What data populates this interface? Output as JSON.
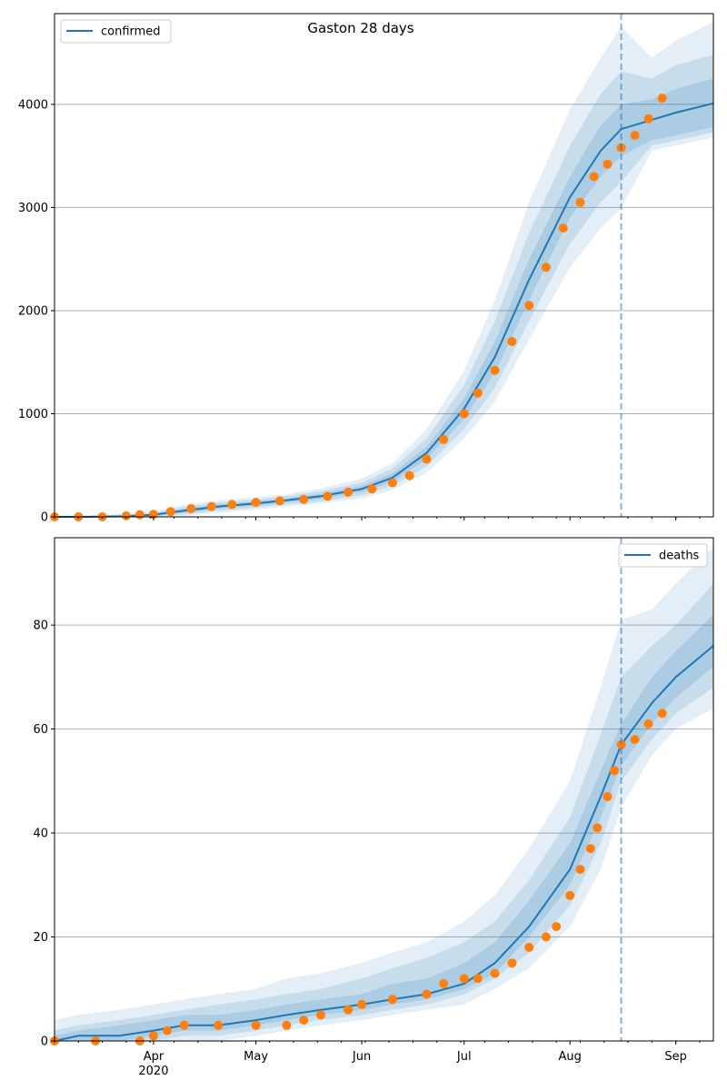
{
  "title": "Gaston 28 days",
  "colors": {
    "line": "#1f77b4",
    "band": "#1f77b4",
    "points": "#ff7f0e",
    "grid": "#b0b0b0",
    "forecast_line": "#1f77b4"
  },
  "x_ticks": [
    {
      "date": "2020-04-01",
      "label": "Apr",
      "sublabel": "2020"
    },
    {
      "date": "2020-05-01",
      "label": "May",
      "sublabel": ""
    },
    {
      "date": "2020-06-01",
      "label": "Jun",
      "sublabel": ""
    },
    {
      "date": "2020-07-01",
      "label": "Jul",
      "sublabel": ""
    },
    {
      "date": "2020-08-01",
      "label": "Aug",
      "sublabel": ""
    },
    {
      "date": "2020-09-01",
      "label": "Sep",
      "sublabel": ""
    }
  ],
  "chart_data": [
    {
      "type": "line",
      "title": "Gaston 28 days",
      "legend": {
        "label": "confirmed",
        "position": "top-left"
      },
      "xlim": [
        "2020-03-03",
        "2020-09-12"
      ],
      "ylim": [
        0,
        4880
      ],
      "y_ticks": [
        0,
        1000,
        2000,
        3000,
        4000
      ],
      "grid": "horizontal",
      "forecast_start": "2020-08-16",
      "model": {
        "name": "confirmed",
        "dates": [
          "2020-03-03",
          "2020-03-13",
          "2020-03-23",
          "2020-04-01",
          "2020-04-10",
          "2020-04-20",
          "2020-05-01",
          "2020-05-10",
          "2020-05-20",
          "2020-06-01",
          "2020-06-10",
          "2020-06-20",
          "2020-07-01",
          "2020-07-10",
          "2020-07-20",
          "2020-08-01",
          "2020-08-10",
          "2020-08-16",
          "2020-08-25",
          "2020-09-01",
          "2020-09-12"
        ],
        "median": [
          0,
          0,
          5,
          20,
          60,
          100,
          130,
          160,
          200,
          270,
          380,
          620,
          1050,
          1550,
          2300,
          3100,
          3550,
          3760,
          3850,
          3920,
          4010
        ],
        "inner_band": [
          [
            0,
            0
          ],
          [
            0,
            0
          ],
          [
            2,
            10
          ],
          [
            10,
            30
          ],
          [
            40,
            80
          ],
          [
            80,
            120
          ],
          [
            110,
            150
          ],
          [
            140,
            180
          ],
          [
            175,
            225
          ],
          [
            240,
            300
          ],
          [
            340,
            420
          ],
          [
            560,
            680
          ],
          [
            950,
            1150
          ],
          [
            1400,
            1700
          ],
          [
            2100,
            2500
          ],
          [
            2900,
            3300
          ],
          [
            3300,
            3800
          ],
          [
            3500,
            4000
          ],
          [
            3650,
            4050
          ],
          [
            3700,
            4150
          ],
          [
            3780,
            4250
          ]
        ],
        "mid_band": [
          [
            0,
            0
          ],
          [
            0,
            5
          ],
          [
            0,
            20
          ],
          [
            5,
            40
          ],
          [
            25,
            95
          ],
          [
            60,
            140
          ],
          [
            90,
            170
          ],
          [
            120,
            200
          ],
          [
            150,
            250
          ],
          [
            210,
            330
          ],
          [
            300,
            470
          ],
          [
            490,
            760
          ],
          [
            850,
            1280
          ],
          [
            1250,
            1900
          ],
          [
            1900,
            2750
          ],
          [
            2650,
            3600
          ],
          [
            3050,
            4100
          ],
          [
            3250,
            4320
          ],
          [
            3600,
            4250
          ],
          [
            3650,
            4380
          ],
          [
            3730,
            4480
          ]
        ],
        "outer_band": [
          [
            0,
            10
          ],
          [
            0,
            15
          ],
          [
            0,
            35
          ],
          [
            0,
            55
          ],
          [
            10,
            115
          ],
          [
            40,
            160
          ],
          [
            70,
            190
          ],
          [
            100,
            220
          ],
          [
            130,
            275
          ],
          [
            180,
            370
          ],
          [
            260,
            520
          ],
          [
            430,
            850
          ],
          [
            760,
            1420
          ],
          [
            1120,
            2100
          ],
          [
            1720,
            3050
          ],
          [
            2420,
            3950
          ],
          [
            2800,
            4450
          ],
          [
            3000,
            4750
          ],
          [
            3550,
            4450
          ],
          [
            3600,
            4620
          ],
          [
            3680,
            4800
          ]
        ]
      },
      "observed": {
        "name": "observed",
        "dates": [
          "2020-03-03",
          "2020-03-10",
          "2020-03-17",
          "2020-03-24",
          "2020-03-28",
          "2020-04-01",
          "2020-04-06",
          "2020-04-12",
          "2020-04-18",
          "2020-04-24",
          "2020-05-01",
          "2020-05-08",
          "2020-05-15",
          "2020-05-22",
          "2020-05-28",
          "2020-06-04",
          "2020-06-10",
          "2020-06-15",
          "2020-06-20",
          "2020-06-25",
          "2020-07-01",
          "2020-07-05",
          "2020-07-10",
          "2020-07-15",
          "2020-07-20",
          "2020-07-25",
          "2020-07-30",
          "2020-08-04",
          "2020-08-08",
          "2020-08-12",
          "2020-08-16",
          "2020-08-20",
          "2020-08-24",
          "2020-08-28"
        ],
        "values": [
          0,
          0,
          0,
          10,
          20,
          25,
          50,
          80,
          100,
          120,
          140,
          155,
          170,
          200,
          240,
          270,
          330,
          400,
          560,
          750,
          1000,
          1200,
          1420,
          1700,
          2050,
          2420,
          2800,
          3050,
          3300,
          3420,
          3580,
          3700,
          3860,
          4060
        ]
      }
    },
    {
      "type": "line",
      "legend": {
        "label": "deaths",
        "position": "top-right"
      },
      "xlim": [
        "2020-03-03",
        "2020-09-12"
      ],
      "ylim": [
        0,
        96.8
      ],
      "y_ticks": [
        0,
        20,
        40,
        60,
        80
      ],
      "grid": "horizontal",
      "forecast_start": "2020-08-16",
      "model": {
        "name": "deaths",
        "dates": [
          "2020-03-03",
          "2020-03-10",
          "2020-03-22",
          "2020-04-01",
          "2020-04-10",
          "2020-04-20",
          "2020-05-01",
          "2020-05-10",
          "2020-05-20",
          "2020-06-01",
          "2020-06-10",
          "2020-06-20",
          "2020-07-01",
          "2020-07-10",
          "2020-07-20",
          "2020-08-01",
          "2020-08-10",
          "2020-08-16",
          "2020-08-25",
          "2020-09-01",
          "2020-09-12"
        ],
        "median": [
          0,
          1,
          1,
          2,
          3,
          3,
          4,
          5,
          6,
          7,
          8,
          9,
          11,
          15,
          22,
          33,
          47,
          57,
          65,
          70,
          76
        ],
        "inner_band": [
          [
            0,
            1
          ],
          [
            0,
            2
          ],
          [
            0,
            3
          ],
          [
            1,
            4
          ],
          [
            2,
            5
          ],
          [
            2,
            5
          ],
          [
            3,
            6
          ],
          [
            4,
            7
          ],
          [
            5,
            8
          ],
          [
            6,
            9
          ],
          [
            7,
            11
          ],
          [
            8,
            12
          ],
          [
            10,
            15
          ],
          [
            13,
            19
          ],
          [
            20,
            27
          ],
          [
            30,
            38
          ],
          [
            43,
            52
          ],
          [
            53,
            61
          ],
          [
            61,
            70
          ],
          [
            66,
            75
          ],
          [
            72,
            82
          ]
        ],
        "mid_band": [
          [
            0,
            2
          ],
          [
            0,
            3
          ],
          [
            0,
            4
          ],
          [
            0,
            5
          ],
          [
            1,
            6
          ],
          [
            1,
            7
          ],
          [
            2,
            8
          ],
          [
            3,
            9
          ],
          [
            4,
            10
          ],
          [
            5,
            12
          ],
          [
            6,
            14
          ],
          [
            7,
            16
          ],
          [
            9,
            19
          ],
          [
            12,
            23
          ],
          [
            17,
            31
          ],
          [
            26,
            43
          ],
          [
            38,
            59
          ],
          [
            50,
            70
          ],
          [
            58,
            76
          ],
          [
            63,
            80
          ],
          [
            68,
            88
          ]
        ],
        "outer_band": [
          [
            0,
            4
          ],
          [
            0,
            5
          ],
          [
            0,
            6
          ],
          [
            0,
            7
          ],
          [
            0,
            8
          ],
          [
            0,
            9
          ],
          [
            1,
            10
          ],
          [
            2,
            12
          ],
          [
            3,
            13
          ],
          [
            4,
            15
          ],
          [
            5,
            17
          ],
          [
            6,
            19
          ],
          [
            7,
            23
          ],
          [
            10,
            28
          ],
          [
            14,
            37
          ],
          [
            22,
            50
          ],
          [
            33,
            68
          ],
          [
            45,
            81
          ],
          [
            55,
            83
          ],
          [
            60,
            88
          ],
          [
            64,
            95
          ]
        ]
      },
      "observed": {
        "name": "observed",
        "dates": [
          "2020-03-03",
          "2020-03-15",
          "2020-03-28",
          "2020-04-01",
          "2020-04-05",
          "2020-04-10",
          "2020-04-20",
          "2020-05-01",
          "2020-05-10",
          "2020-05-15",
          "2020-05-20",
          "2020-05-28",
          "2020-06-01",
          "2020-06-10",
          "2020-06-20",
          "2020-06-25",
          "2020-07-01",
          "2020-07-05",
          "2020-07-10",
          "2020-07-15",
          "2020-07-20",
          "2020-07-25",
          "2020-07-28",
          "2020-08-01",
          "2020-08-04",
          "2020-08-07",
          "2020-08-09",
          "2020-08-12",
          "2020-08-14",
          "2020-08-16",
          "2020-08-20",
          "2020-08-24",
          "2020-08-28"
        ],
        "values": [
          0,
          0,
          0,
          1,
          2,
          3,
          3,
          3,
          3,
          4,
          5,
          6,
          7,
          8,
          9,
          11,
          12,
          12,
          13,
          15,
          18,
          20,
          22,
          28,
          33,
          37,
          41,
          47,
          52,
          57,
          58,
          61,
          63
        ]
      }
    }
  ]
}
